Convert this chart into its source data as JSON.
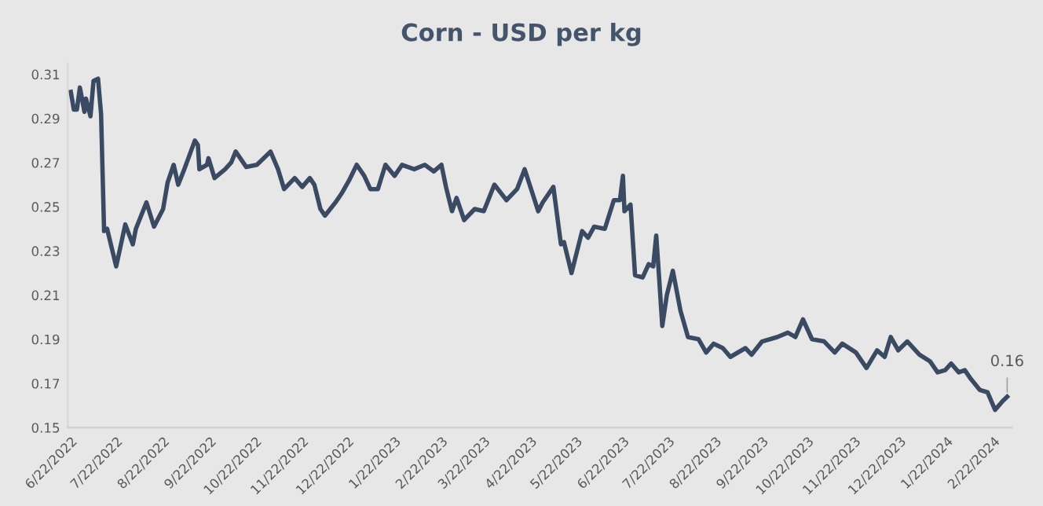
{
  "chart_data": {
    "type": "line",
    "title": "Corn - USD per kg",
    "x": [
      "2022-06-22",
      "2022-06-24",
      "2022-06-26",
      "2022-06-28",
      "2022-07-01",
      "2022-07-02",
      "2022-07-05",
      "2022-07-07",
      "2022-07-10",
      "2022-07-12",
      "2022-07-14",
      "2022-07-16",
      "2022-07-22",
      "2022-07-28",
      "2022-08-02",
      "2022-08-04",
      "2022-08-11",
      "2022-08-16",
      "2022-08-22",
      "2022-08-25",
      "2022-08-29",
      "2022-09-01",
      "2022-09-05",
      "2022-09-12",
      "2022-09-14",
      "2022-09-15",
      "2022-09-20",
      "2022-09-21",
      "2022-09-25",
      "2022-10-02",
      "2022-10-06",
      "2022-10-09",
      "2022-10-16",
      "2022-10-23",
      "2022-11-01",
      "2022-11-06",
      "2022-11-10",
      "2022-11-17",
      "2022-11-22",
      "2022-11-27",
      "2022-11-30",
      "2022-12-04",
      "2022-12-07",
      "2022-12-14",
      "2022-12-18",
      "2022-12-23",
      "2022-12-28",
      "2023-01-02",
      "2023-01-06",
      "2023-01-11",
      "2023-01-16",
      "2023-01-22",
      "2023-01-27",
      "2023-02-04",
      "2023-02-11",
      "2023-02-17",
      "2023-02-22",
      "2023-02-25",
      "2023-03-01",
      "2023-03-04",
      "2023-03-09",
      "2023-03-16",
      "2023-03-22",
      "2023-03-29",
      "2023-04-06",
      "2023-04-13",
      "2023-04-18",
      "2023-04-27",
      "2023-04-30",
      "2023-05-07",
      "2023-05-12",
      "2023-05-14",
      "2023-05-19",
      "2023-05-26",
      "2023-05-30",
      "2023-06-03",
      "2023-06-10",
      "2023-06-16",
      "2023-06-20",
      "2023-06-22",
      "2023-06-23",
      "2023-06-27",
      "2023-06-30",
      "2023-07-05",
      "2023-07-09",
      "2023-07-12",
      "2023-07-14",
      "2023-07-16",
      "2023-07-18",
      "2023-07-21",
      "2023-07-25",
      "2023-07-30",
      "2023-08-04",
      "2023-08-11",
      "2023-08-16",
      "2023-08-21",
      "2023-08-27",
      "2023-09-01",
      "2023-09-11",
      "2023-09-15",
      "2023-09-22",
      "2023-10-02",
      "2023-10-09",
      "2023-10-14",
      "2023-10-19",
      "2023-10-25",
      "2023-11-02",
      "2023-11-09",
      "2023-11-14",
      "2023-11-23",
      "2023-11-30",
      "2023-12-07",
      "2023-12-12",
      "2023-12-16",
      "2023-12-21",
      "2023-12-27",
      "2024-01-04",
      "2024-01-11",
      "2024-01-16",
      "2024-01-21",
      "2024-01-25",
      "2024-01-30",
      "2024-02-03",
      "2024-02-07",
      "2024-02-13",
      "2024-02-18",
      "2024-02-23",
      "2024-02-28",
      "2024-03-02"
    ],
    "series": [
      {
        "color": "#3b4a63",
        "values": [
          0.302,
          0.294,
          0.294,
          0.304,
          0.293,
          0.299,
          0.291,
          0.307,
          0.308,
          0.292,
          0.239,
          0.24,
          0.223,
          0.242,
          0.233,
          0.24,
          0.252,
          0.241,
          0.249,
          0.261,
          0.269,
          0.26,
          0.267,
          0.28,
          0.278,
          0.267,
          0.269,
          0.272,
          0.263,
          0.267,
          0.27,
          0.275,
          0.268,
          0.269,
          0.275,
          0.267,
          0.258,
          0.263,
          0.259,
          0.263,
          0.26,
          0.249,
          0.246,
          0.252,
          0.256,
          0.262,
          0.269,
          0.264,
          0.258,
          0.258,
          0.269,
          0.264,
          0.269,
          0.267,
          0.269,
          0.266,
          0.269,
          0.259,
          0.248,
          0.254,
          0.244,
          0.249,
          0.248,
          0.26,
          0.253,
          0.258,
          0.267,
          0.248,
          0.252,
          0.259,
          0.233,
          0.234,
          0.22,
          0.239,
          0.236,
          0.241,
          0.24,
          0.253,
          0.253,
          0.264,
          0.248,
          0.251,
          0.219,
          0.218,
          0.224,
          0.223,
          0.237,
          0.217,
          0.196,
          0.21,
          0.221,
          0.203,
          0.191,
          0.19,
          0.184,
          0.188,
          0.186,
          0.182,
          0.186,
          0.183,
          0.189,
          0.191,
          0.193,
          0.191,
          0.199,
          0.19,
          0.189,
          0.184,
          0.188,
          0.184,
          0.177,
          0.185,
          0.182,
          0.191,
          0.185,
          0.189,
          0.183,
          0.18,
          0.175,
          0.176,
          0.179,
          0.175,
          0.176,
          0.172,
          0.167,
          0.166,
          0.158,
          0.162,
          0.164
        ]
      }
    ],
    "xlim": [
      "2022-06-20",
      "2024-03-05"
    ],
    "xticks": [
      {
        "value": "2022-06-22",
        "label": "6/22/2022"
      },
      {
        "value": "2022-07-22",
        "label": "7/22/2022"
      },
      {
        "value": "2022-08-22",
        "label": "8/22/2022"
      },
      {
        "value": "2022-09-22",
        "label": "9/22/2022"
      },
      {
        "value": "2022-10-22",
        "label": "10/22/2022"
      },
      {
        "value": "2022-11-22",
        "label": "11/22/2022"
      },
      {
        "value": "2022-12-22",
        "label": "12/22/2022"
      },
      {
        "value": "2023-01-22",
        "label": "1/22/2023"
      },
      {
        "value": "2023-02-22",
        "label": "2/22/2023"
      },
      {
        "value": "2023-03-22",
        "label": "3/22/2023"
      },
      {
        "value": "2023-04-22",
        "label": "4/22/2023"
      },
      {
        "value": "2023-05-22",
        "label": "5/22/2023"
      },
      {
        "value": "2023-06-22",
        "label": "6/22/2023"
      },
      {
        "value": "2023-07-22",
        "label": "7/22/2023"
      },
      {
        "value": "2023-08-22",
        "label": "8/22/2023"
      },
      {
        "value": "2023-09-22",
        "label": "9/22/2023"
      },
      {
        "value": "2023-10-22",
        "label": "10/22/2023"
      },
      {
        "value": "2023-11-22",
        "label": "11/22/2023"
      },
      {
        "value": "2023-12-22",
        "label": "12/22/2023"
      },
      {
        "value": "2024-01-22",
        "label": "1/22/2024"
      },
      {
        "value": "2024-02-22",
        "label": "2/22/2024"
      }
    ],
    "ylim": [
      0.15,
      0.315
    ],
    "yticks": [
      {
        "value": 0.15,
        "label": "0.15"
      },
      {
        "value": 0.17,
        "label": "0.17"
      },
      {
        "value": 0.19,
        "label": "0.19"
      },
      {
        "value": 0.21,
        "label": "0.21"
      },
      {
        "value": 0.23,
        "label": "0.23"
      },
      {
        "value": 0.25,
        "label": "0.25"
      },
      {
        "value": 0.27,
        "label": "0.27"
      },
      {
        "value": 0.29,
        "label": "0.29"
      },
      {
        "value": 0.31,
        "label": "0.31"
      }
    ],
    "annotations": [
      {
        "text": "0.16",
        "x": "2024-03-02",
        "y": 0.164
      }
    ],
    "grid": false,
    "legend": false,
    "marker": "none",
    "line_style": "solid"
  }
}
